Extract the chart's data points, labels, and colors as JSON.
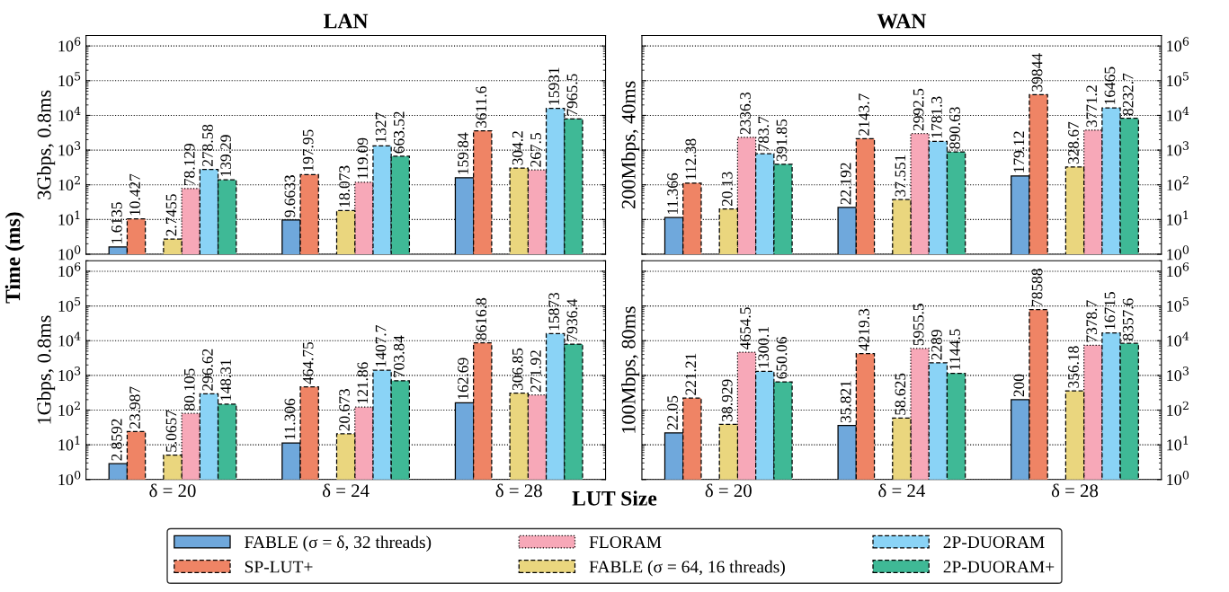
{
  "chart_data": [
    {
      "type": "bar",
      "title": "LAN",
      "ylabel": "3Gbps, 0.8ms",
      "categories": [
        "δ = 20",
        "δ = 24",
        "δ = 28"
      ],
      "log": true,
      "ylim": [
        1,
        2000000
      ],
      "yticks": [
        {
          "value": 1,
          "label": "10$^{0}$"
        },
        {
          "value": 10,
          "label": "10$^{1}$"
        },
        {
          "value": 100,
          "label": "10$^{2}$"
        },
        {
          "value": 1000,
          "label": "10$^{3}$"
        },
        {
          "value": 10000,
          "label": "10$^{4}$"
        },
        {
          "value": 100000,
          "label": "10$^{5}$"
        },
        {
          "value": 1000000,
          "label": "10$^{6}$"
        }
      ],
      "grid": "y",
      "tick_labels": "y",
      "data_labels": true,
      "legend": "bottom",
      "annotations": [
        "Time (ms)",
        "LUT Size"
      ],
      "series": [
        {
          "name": "FABLE (σ = δ, 32 threads)",
          "color": "#6fa8dc",
          "line_style": "solid",
          "values": [
            1.6135,
            9.6633,
            159.84
          ]
        },
        {
          "name": "SP-LUT+",
          "color": "#ef8465",
          "line_style": "dashed",
          "values": [
            10.427,
            197.95,
            3611.6
          ]
        },
        {
          "name": "FLORAM",
          "color": "#f7a8b8",
          "line_style": "dotted",
          "values": [
            78.129,
            119.09,
            267.5
          ]
        },
        {
          "name": "FABLE (σ = 64, 16 threads)",
          "color": "#ead67e",
          "line_style": "dashed",
          "values": [
            2.7455,
            18.073,
            304.2
          ]
        },
        {
          "name": "2P-DUORAM",
          "color": "#8ad3f6",
          "line_style": "dashed",
          "values": [
            278.58,
            1327,
            15931
          ]
        },
        {
          "name": "2P-DUORAM+",
          "color": "#3fb996",
          "line_style": "dashed",
          "values": [
            139.29,
            663.52,
            7965.5
          ]
        }
      ]
    },
    {
      "type": "bar",
      "title": "WAN",
      "ylabel": "200Mbps, 40ms",
      "categories": [
        "δ = 20",
        "δ = 24",
        "δ = 28"
      ],
      "log": true,
      "ylim": [
        1,
        2000000
      ],
      "yticks": [
        {
          "value": 1,
          "label": "10$^{0}$"
        },
        {
          "value": 10,
          "label": "10$^{1}$"
        },
        {
          "value": 100,
          "label": "10$^{2}$"
        },
        {
          "value": 1000,
          "label": "10$^{3}$"
        },
        {
          "value": 10000,
          "label": "10$^{4}$"
        },
        {
          "value": 100000,
          "label": "10$^{5}$"
        },
        {
          "value": 1000000,
          "label": "10$^{6}$"
        }
      ],
      "grid": "y",
      "tick_labels": "y",
      "data_labels": true,
      "series": [
        {
          "name": "FABLE (σ = δ, 32 threads)",
          "color": "#6fa8dc",
          "line_style": "solid",
          "values": [
            11.366,
            22.192,
            179.12
          ]
        },
        {
          "name": "SP-LUT+",
          "color": "#ef8465",
          "line_style": "dashed",
          "values": [
            112.38,
            2143.7,
            39844
          ]
        },
        {
          "name": "FLORAM",
          "color": "#f7a8b8",
          "line_style": "dotted",
          "values": [
            2336.3,
            2992.5,
            3771.2
          ]
        },
        {
          "name": "FABLE (σ = 64, 16 threads)",
          "color": "#ead67e",
          "line_style": "dashed",
          "values": [
            20.13,
            37.551,
            328.67
          ]
        },
        {
          "name": "2P-DUORAM",
          "color": "#8ad3f6",
          "line_style": "dashed",
          "values": [
            783.7,
            1781.3,
            16465
          ]
        },
        {
          "name": "2P-DUORAM+",
          "color": "#3fb996",
          "line_style": "dashed",
          "values": [
            391.85,
            890.63,
            8232.7
          ]
        }
      ]
    },
    {
      "type": "bar",
      "ylabel": "1Gbps, 0.8ms",
      "categories": [
        "δ = 20",
        "δ = 24",
        "δ = 28"
      ],
      "log": true,
      "ylim": [
        1,
        2000000
      ],
      "yticks": [
        {
          "value": 1,
          "label": "10$^{0}$"
        },
        {
          "value": 10,
          "label": "10$^{1}$"
        },
        {
          "value": 100,
          "label": "10$^{2}$"
        },
        {
          "value": 1000,
          "label": "10$^{3}$"
        },
        {
          "value": 10000,
          "label": "10$^{4}$"
        },
        {
          "value": 100000,
          "label": "10$^{5}$"
        },
        {
          "value": 1000000,
          "label": "10$^{6}$"
        }
      ],
      "grid": "y",
      "data_labels": true,
      "series": [
        {
          "name": "FABLE (σ = δ, 32 threads)",
          "color": "#6fa8dc",
          "line_style": "solid",
          "values": [
            2.8592,
            11.306,
            162.69
          ]
        },
        {
          "name": "SP-LUT+",
          "color": "#ef8465",
          "line_style": "dashed",
          "values": [
            23.987,
            464.75,
            8616.8
          ]
        },
        {
          "name": "FLORAM",
          "color": "#f7a8b8",
          "line_style": "dotted",
          "values": [
            80.105,
            121.86,
            271.92
          ]
        },
        {
          "name": "FABLE (σ = 64, 16 threads)",
          "color": "#ead67e",
          "line_style": "dashed",
          "values": [
            5.0657,
            20.673,
            306.85
          ]
        },
        {
          "name": "2P-DUORAM",
          "color": "#8ad3f6",
          "line_style": "dashed",
          "values": [
            296.62,
            1407.7,
            15873
          ]
        },
        {
          "name": "2P-DUORAM+",
          "color": "#3fb996",
          "line_style": "dashed",
          "values": [
            148.31,
            703.84,
            7936.4
          ]
        }
      ]
    },
    {
      "type": "bar",
      "ylabel": "100Mbps, 80ms",
      "categories": [
        "δ = 20",
        "δ = 24",
        "δ = 28"
      ],
      "log": true,
      "ylim": [
        1,
        2000000
      ],
      "yticks": [
        {
          "value": 1,
          "label": "10$^{0}$"
        },
        {
          "value": 10,
          "label": "10$^{1}$"
        },
        {
          "value": 100,
          "label": "10$^{2}$"
        },
        {
          "value": 1000,
          "label": "10$^{3}$"
        },
        {
          "value": 10000,
          "label": "10$^{4}$"
        },
        {
          "value": 100000,
          "label": "10$^{5}$"
        },
        {
          "value": 1000000,
          "label": "10$^{6}$"
        }
      ],
      "grid": "y",
      "data_labels": true,
      "series": [
        {
          "name": "FABLE (σ = δ, 32 threads)",
          "color": "#6fa8dc",
          "line_style": "solid",
          "values": [
            22.05,
            35.821,
            200
          ]
        },
        {
          "name": "SP-LUT+",
          "color": "#ef8465",
          "line_style": "dashed",
          "values": [
            221.21,
            4219.3,
            78588
          ]
        },
        {
          "name": "FLORAM",
          "color": "#f7a8b8",
          "line_style": "dotted",
          "values": [
            4654.5,
            5955.5,
            7378.7
          ]
        },
        {
          "name": "FABLE (σ = 64, 16 threads)",
          "color": "#ead67e",
          "line_style": "dashed",
          "values": [
            38.929,
            58.625,
            356.18
          ]
        },
        {
          "name": "2P-DUORAM",
          "color": "#8ad3f6",
          "line_style": "dashed",
          "values": [
            1300.1,
            2289,
            16715
          ]
        },
        {
          "name": "2P-DUORAM+",
          "color": "#3fb996",
          "line_style": "dashed",
          "values": [
            650.06,
            1144.5,
            8357.6
          ]
        }
      ]
    }
  ]
}
